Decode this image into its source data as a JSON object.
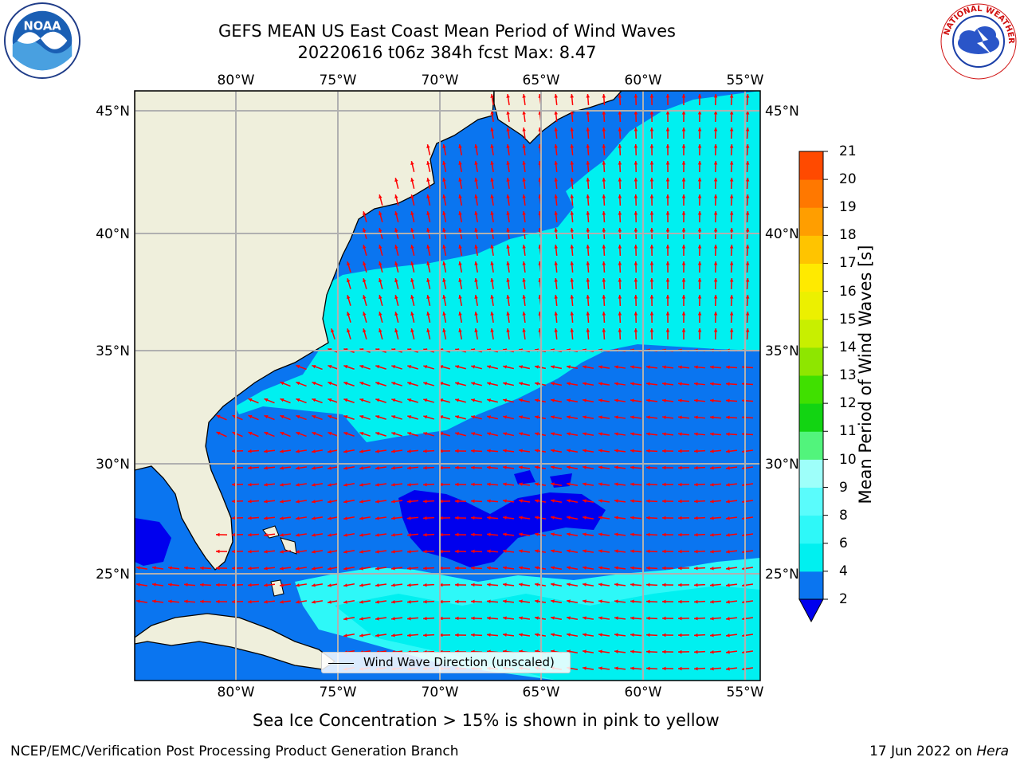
{
  "title": "GEFS MEAN US East Coast Mean Period of Wind Waves",
  "subtitle": "20220616 t06z 384h fcst   Max: 8.47",
  "logos": {
    "left": "NOAA",
    "right": "NATIONAL WEATHER SERVICE"
  },
  "map": {
    "projection": "Mercator",
    "lon_range": [
      -85,
      -54.5
    ],
    "lat_range": [
      20.5,
      46
    ],
    "lon_ticks": [
      -80,
      -75,
      -70,
      -65,
      -60,
      -55
    ],
    "lat_ticks": [
      45,
      40,
      35,
      30,
      25
    ],
    "lon_labels": [
      "80°W",
      "75°W",
      "70°W",
      "65°W",
      "60°W",
      "55°W"
    ],
    "lat_labels": [
      "45°N",
      "40°N",
      "35°N",
      "30°N",
      "25°N"
    ],
    "gridlines": true,
    "land_color": "#efefdc",
    "arrow_color": "#ff0000"
  },
  "legend": {
    "label": "Wind Wave Direction (unscaled)"
  },
  "colorbar": {
    "label": "Mean Period of Wind Waves [s]",
    "ticks": [
      "21",
      "20",
      "19",
      "18",
      "17",
      "16",
      "15",
      "14",
      "13",
      "12",
      "11",
      "10",
      "9",
      "8",
      "6",
      "4",
      "2"
    ],
    "levels": [
      2,
      4,
      6,
      8,
      9,
      10,
      11,
      12,
      13,
      14,
      15,
      16,
      17,
      18,
      19,
      20,
      21
    ],
    "colors": [
      "#0a75f0",
      "#00f0f0",
      "#2ef8f8",
      "#5afcfc",
      "#9efffa",
      "#52f47c",
      "#12d412",
      "#40e000",
      "#8ee600",
      "#c8ef00",
      "#ecf000",
      "#ffea00",
      "#ffc400",
      "#ff9e00",
      "#ff7800",
      "#ff4a00",
      "#ff0000"
    ],
    "extend_low_color": "#0000ee"
  },
  "note": "Sea Ice Concentration > 15% is shown in pink to yellow",
  "footer": {
    "left": "NCEP/EMC/Verification Post Processing Product Generation Branch",
    "right_date": "17 Jun 2022 on ",
    "right_host": "Hera"
  }
}
